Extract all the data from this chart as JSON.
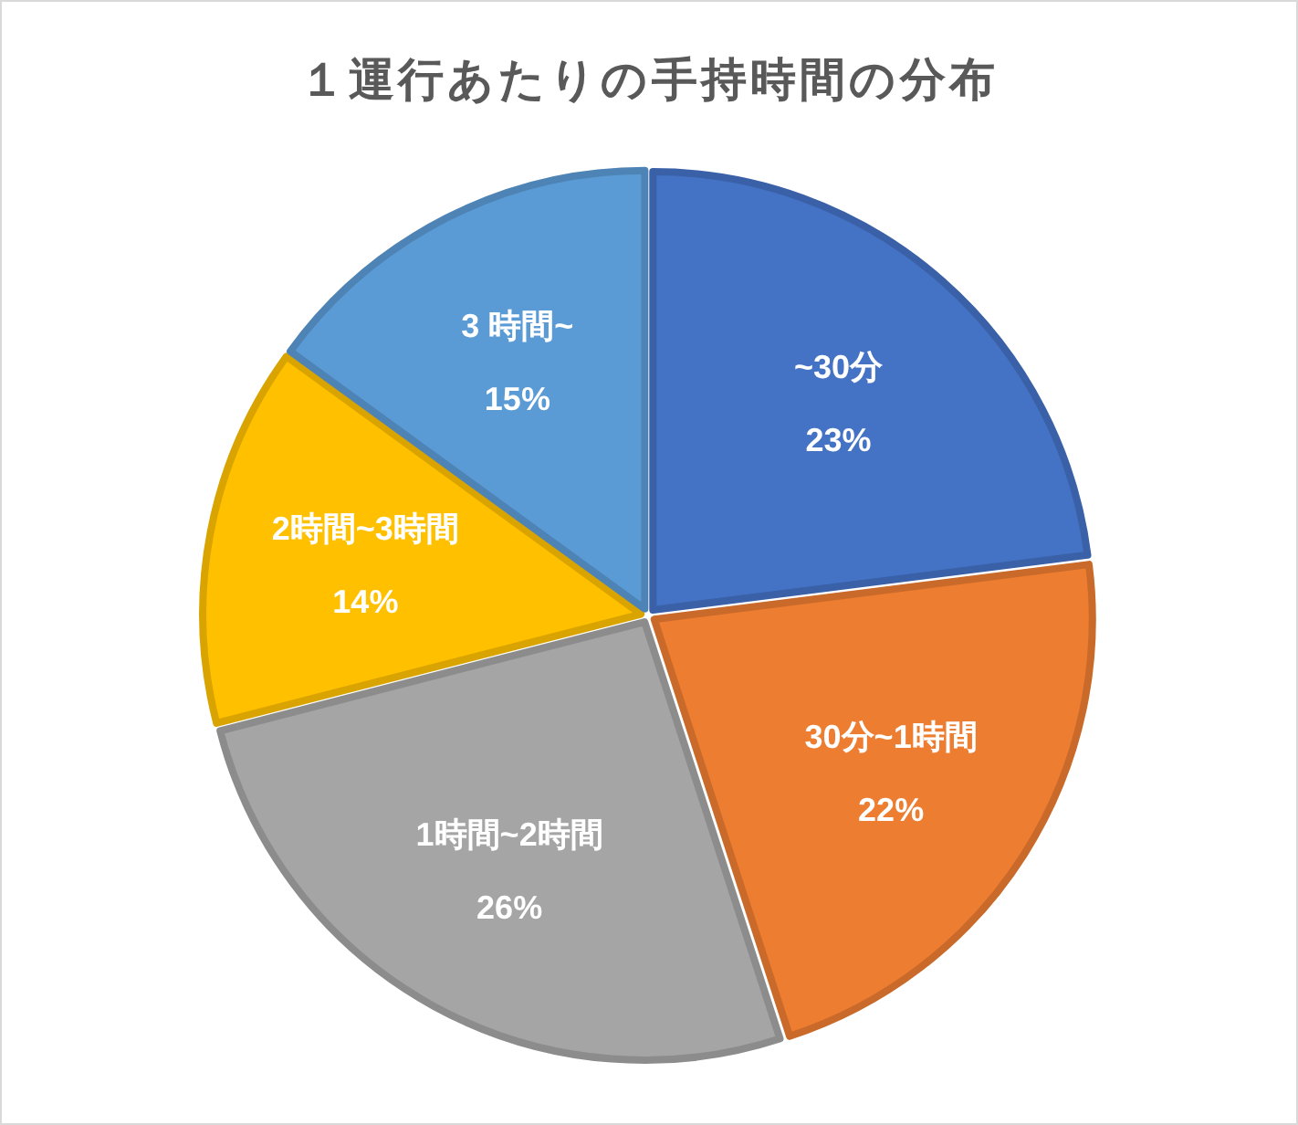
{
  "chart_data": {
    "type": "pie",
    "title": "１運行あたりの手持時間の分布",
    "categories": [
      "~30分",
      "30分~1時間",
      "1時間~2時間",
      "2時間~3時間",
      "3 時間~"
    ],
    "values": [
      23,
      22,
      26,
      14,
      15
    ],
    "value_labels": [
      "23%",
      "22%",
      "26%",
      "14%",
      "15%"
    ],
    "colors": [
      "#4472c4",
      "#ed7d31",
      "#a5a5a5",
      "#ffc000",
      "#5b9bd5"
    ]
  }
}
